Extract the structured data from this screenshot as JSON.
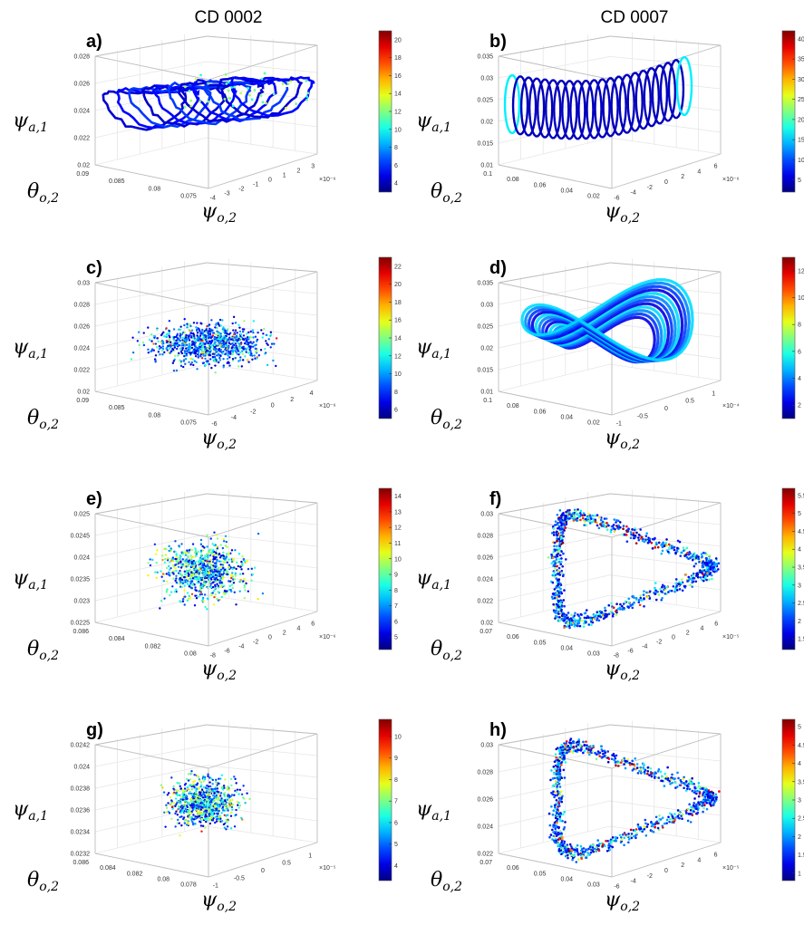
{
  "column_titles": [
    "CD 0002",
    "CD 0007"
  ],
  "chart_data": [
    {
      "id": "a",
      "type": "scatter",
      "style": "trajectory",
      "title": "",
      "xlabel": "ψo,2",
      "ylabel": "θo,2",
      "zlabel": "ψa,1",
      "x_ticks": [
        "-4",
        "-3",
        "-2",
        "-1",
        "0",
        "1",
        "2",
        "3"
      ],
      "x_exp": "×10⁻⁶",
      "y_ticks": [
        "0.075",
        "0.08",
        "0.085",
        "0.09"
      ],
      "z_ticks": [
        "0.02",
        "0.022",
        "0.024",
        "0.026",
        "0.028"
      ],
      "colorbar_ticks": [
        "4",
        "6",
        "8",
        "10",
        "12",
        "14",
        "16",
        "18",
        "20"
      ],
      "colorbar_range": [
        3,
        21
      ]
    },
    {
      "id": "b",
      "type": "scatter",
      "style": "helix",
      "title": "",
      "xlabel": "ψo,2",
      "ylabel": "θo,2",
      "zlabel": "ψa,1",
      "x_ticks": [
        "-6",
        "-4",
        "-2",
        "0",
        "2",
        "4",
        "6"
      ],
      "x_exp": "×10⁻⁶",
      "y_ticks": [
        "0.02",
        "0.04",
        "0.06",
        "0.08",
        "0.1"
      ],
      "z_ticks": [
        "0.01",
        "0.015",
        "0.02",
        "0.025",
        "0.03",
        "0.035"
      ],
      "colorbar_ticks": [
        "5",
        "10",
        "15",
        "20",
        "25",
        "30",
        "35",
        "40"
      ],
      "colorbar_range": [
        2,
        42
      ]
    },
    {
      "id": "c",
      "type": "scatter",
      "style": "cloud",
      "title": "",
      "xlabel": "ψo,2",
      "ylabel": "θo,2",
      "zlabel": "ψa,1",
      "x_ticks": [
        "-6",
        "-4",
        "-2",
        "0",
        "2",
        "4"
      ],
      "x_exp": "×10⁻⁶",
      "y_ticks": [
        "0.075",
        "0.08",
        "0.085",
        "0.09"
      ],
      "z_ticks": [
        "0.02",
        "0.022",
        "0.024",
        "0.026",
        "0.028",
        "0.03"
      ],
      "colorbar_ticks": [
        "6",
        "8",
        "10",
        "12",
        "14",
        "16",
        "18",
        "20",
        "22"
      ],
      "colorbar_range": [
        5,
        23
      ]
    },
    {
      "id": "d",
      "type": "scatter",
      "style": "butterfly",
      "title": "",
      "xlabel": "ψo,2",
      "ylabel": "θo,2",
      "zlabel": "ψa,1",
      "x_ticks": [
        "-1",
        "-0.5",
        "0",
        "0.5",
        "1"
      ],
      "x_exp": "×10⁻⁴",
      "y_ticks": [
        "0.02",
        "0.04",
        "0.06",
        "0.08",
        "0.1"
      ],
      "z_ticks": [
        "0.01",
        "0.015",
        "0.02",
        "0.025",
        "0.03",
        "0.035"
      ],
      "colorbar_ticks": [
        "2",
        "4",
        "6",
        "8",
        "10",
        "12"
      ],
      "colorbar_range": [
        1,
        13
      ]
    },
    {
      "id": "e",
      "type": "scatter",
      "style": "blob",
      "title": "",
      "xlabel": "ψo,2",
      "ylabel": "θo,2",
      "zlabel": "ψa,1",
      "x_ticks": [
        "-8",
        "-6",
        "-4",
        "-2",
        "0",
        "2",
        "4",
        "6"
      ],
      "x_exp": "×10⁻⁶",
      "y_ticks": [
        "0.08",
        "0.082",
        "0.084",
        "0.086"
      ],
      "z_ticks": [
        "0.0225",
        "0.023",
        "0.0235",
        "0.024",
        "0.0245",
        "0.025"
      ],
      "colorbar_ticks": [
        "5",
        "6",
        "7",
        "8",
        "9",
        "10",
        "11",
        "12",
        "13",
        "14"
      ],
      "colorbar_range": [
        4.2,
        14.5
      ]
    },
    {
      "id": "f",
      "type": "scatter",
      "style": "loop",
      "title": "",
      "xlabel": "ψo,2",
      "ylabel": "θo,2",
      "zlabel": "ψa,1",
      "x_ticks": [
        "-8",
        "-6",
        "-4",
        "-2",
        "0",
        "2",
        "4",
        "6"
      ],
      "x_exp": "×10⁻⁵",
      "y_ticks": [
        "0.03",
        "0.04",
        "0.05",
        "0.06",
        "0.07"
      ],
      "z_ticks": [
        "0.02",
        "0.022",
        "0.024",
        "0.026",
        "0.028",
        "0.03"
      ],
      "colorbar_ticks": [
        "1.5",
        "2",
        "2.5",
        "3",
        "3.5",
        "4",
        "4.5",
        "5",
        "5.5"
      ],
      "colorbar_range": [
        1.2,
        5.7
      ]
    },
    {
      "id": "g",
      "type": "scatter",
      "style": "blob2",
      "title": "",
      "xlabel": "ψo,2",
      "ylabel": "θo,2",
      "zlabel": "ψa,1",
      "x_ticks": [
        "-1",
        "-0.5",
        "0",
        "0.5",
        "1"
      ],
      "x_exp": "×10⁻⁵",
      "y_ticks": [
        "0.078",
        "0.08",
        "0.082",
        "0.084",
        "0.086"
      ],
      "z_ticks": [
        "0.0232",
        "0.0234",
        "0.0236",
        "0.0238",
        "0.024",
        "0.0242"
      ],
      "colorbar_ticks": [
        "4",
        "5",
        "6",
        "7",
        "8",
        "9",
        "10"
      ],
      "colorbar_range": [
        3.3,
        10.8
      ]
    },
    {
      "id": "h",
      "type": "scatter",
      "style": "loop2",
      "title": "",
      "xlabel": "ψo,2",
      "ylabel": "θo,2",
      "zlabel": "ψa,1",
      "x_ticks": [
        "-6",
        "-4",
        "-2",
        "0",
        "2",
        "4",
        "6"
      ],
      "x_exp": "×10⁻⁵",
      "y_ticks": [
        "0.03",
        "0.04",
        "0.05",
        "0.06",
        "0.07"
      ],
      "z_ticks": [
        "0.022",
        "0.024",
        "0.026",
        "0.028",
        "0.03"
      ],
      "colorbar_ticks": [
        "1",
        "1.5",
        "2",
        "2.5",
        "3",
        "3.5",
        "4",
        "4.5",
        "5"
      ],
      "colorbar_range": [
        0.8,
        5.2
      ]
    }
  ],
  "colors": {
    "axis": "#bdbdbd",
    "grid": "#e6e6e6",
    "tick": "#333333"
  }
}
